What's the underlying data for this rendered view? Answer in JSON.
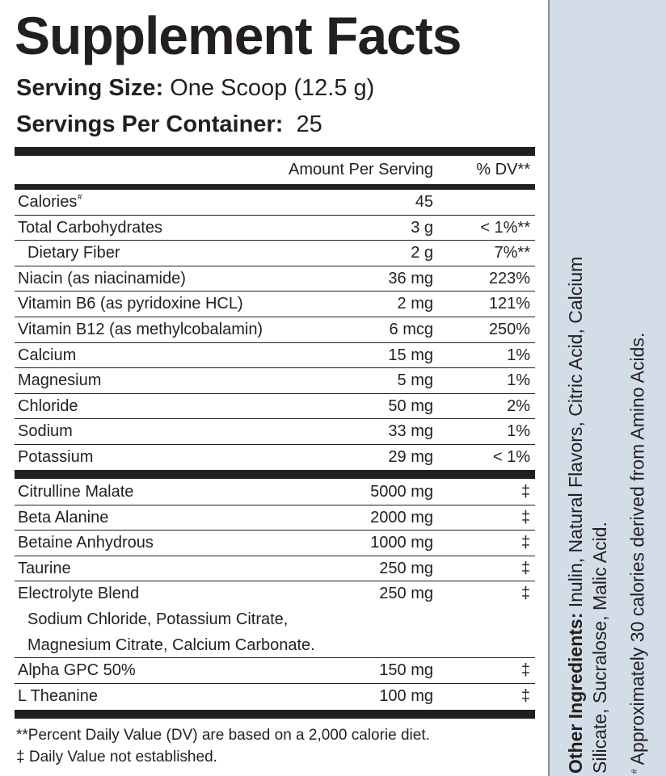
{
  "title": "Supplement Facts",
  "serving_size": {
    "label": "Serving Size:",
    "value": "One Scoop (12.5 g)"
  },
  "servings_per_container": {
    "label": "Servings Per Container:",
    "value": "25"
  },
  "header": {
    "amount": "Amount Per Serving",
    "dv": "% DV**"
  },
  "section1": [
    {
      "name": "Calories",
      "sup": "#",
      "amount": "45",
      "dv": ""
    },
    {
      "name": "Total Carbohydrates",
      "amount": "3 g",
      "dv": "< 1%**"
    },
    {
      "name": "Dietary Fiber",
      "amount": "2 g",
      "dv": "7%**"
    },
    {
      "name": "Niacin (as niacinamide)",
      "amount": "36 mg",
      "dv": "223%"
    },
    {
      "name": "Vitamin B6 (as pyridoxine HCL)",
      "amount": "2 mg",
      "dv": "121%"
    },
    {
      "name": "Vitamin B12 (as methylcobalamin)",
      "amount": "6 mcg",
      "dv": "250%"
    },
    {
      "name": "Calcium",
      "amount": "15 mg",
      "dv": "1%"
    },
    {
      "name": "Magnesium",
      "amount": "5 mg",
      "dv": "1%"
    },
    {
      "name": "Chloride",
      "amount": "50 mg",
      "dv": "2%"
    },
    {
      "name": "Sodium",
      "amount": "33 mg",
      "dv": "1%"
    },
    {
      "name": "Potassium",
      "amount": "29 mg",
      "dv": "< 1%"
    }
  ],
  "section2": [
    {
      "name": "Citrulline Malate",
      "amount": "5000 mg",
      "dv": "‡"
    },
    {
      "name": "Beta Alanine",
      "amount": "2000 mg",
      "dv": "‡"
    },
    {
      "name": "Betaine Anhydrous",
      "amount": "1000 mg",
      "dv": "‡"
    },
    {
      "name": "Taurine",
      "amount": "250 mg",
      "dv": "‡"
    },
    {
      "name": "Electrolyte Blend",
      "amount": "250 mg",
      "dv": "‡",
      "sub": [
        "Sodium Chloride, Potassium Citrate,",
        "Magnesium Citrate, Calcium Carbonate."
      ]
    },
    {
      "name": "Alpha GPC 50%",
      "amount": "150 mg",
      "dv": "‡"
    },
    {
      "name": "L Theanine",
      "amount": "100 mg",
      "dv": "‡"
    }
  ],
  "footnotes": [
    "**Percent Daily Value (DV) are based on a 2,000 calorie diet.",
    "‡ Daily Value not established."
  ],
  "side": {
    "other_label": "Other Ingredients:",
    "other_line1": " Inulin, Natural Flavors, Citric Acid, Calcium",
    "other_line2": "Silicate,  Sucralose, Malic Acid.",
    "note_mark": "#",
    "note": " Approximately 30 calories derived from Amino Acids."
  },
  "colors": {
    "side_bg": "#d3dde8",
    "ink": "#231f20"
  }
}
